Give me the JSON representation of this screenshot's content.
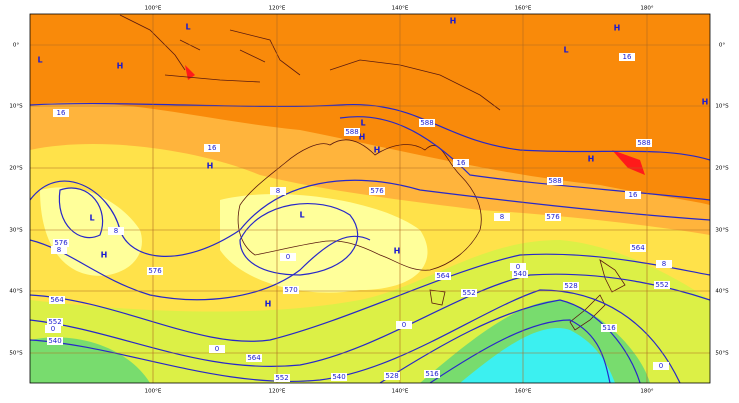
{
  "map": {
    "lon_labels": [
      "100°E",
      "120°E",
      "140°E",
      "160°E",
      "180°"
    ],
    "lat_labels": [
      "0°",
      "10°S",
      "20°S",
      "30°S",
      "40°S",
      "50°S"
    ],
    "center_labels": [
      "L",
      "H",
      "L",
      "H",
      "L",
      "H",
      "H",
      "H",
      "L",
      "H",
      "L",
      "H",
      "H",
      "H",
      "H",
      "L",
      "H"
    ],
    "contour_labels": [
      16,
      16,
      16,
      16,
      16,
      8,
      8,
      8,
      8,
      8,
      0,
      0,
      0,
      0,
      0,
      0,
      576,
      576,
      576,
      576,
      588,
      588,
      588,
      588,
      564,
      564,
      564,
      564,
      552,
      552,
      552,
      552,
      540,
      540,
      540,
      528,
      528,
      516,
      516,
      570
    ]
  }
}
